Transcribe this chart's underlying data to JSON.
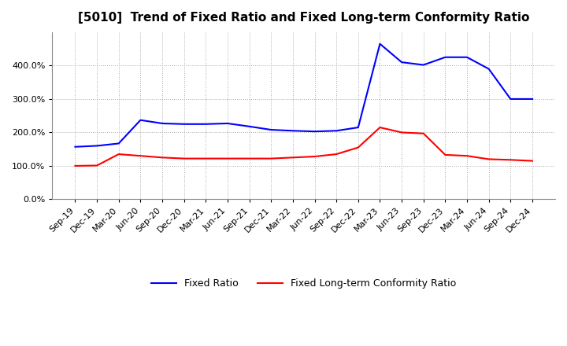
{
  "title": "[5010]  Trend of Fixed Ratio and Fixed Long-term Conformity Ratio",
  "x_labels": [
    "Sep-19",
    "Dec-19",
    "Mar-20",
    "Jun-20",
    "Sep-20",
    "Dec-20",
    "Mar-21",
    "Jun-21",
    "Sep-21",
    "Dec-21",
    "Mar-22",
    "Jun-22",
    "Sep-22",
    "Dec-22",
    "Mar-23",
    "Jun-23",
    "Sep-23",
    "Dec-23",
    "Mar-24",
    "Jun-24",
    "Sep-24",
    "Dec-24"
  ],
  "fixed_ratio": [
    157,
    160,
    167,
    237,
    227,
    225,
    225,
    227,
    218,
    208,
    205,
    203,
    205,
    215,
    465,
    410,
    402,
    425,
    425,
    390,
    300,
    300
  ],
  "fixed_lt_ratio": [
    100,
    101,
    135,
    130,
    125,
    122,
    122,
    122,
    122,
    122,
    125,
    128,
    135,
    155,
    215,
    200,
    197,
    133,
    130,
    120,
    118,
    115
  ],
  "fixed_ratio_color": "#0000FF",
  "fixed_lt_ratio_color": "#FF0000",
  "ylim": [
    0,
    500
  ],
  "yticks": [
    0,
    100,
    200,
    300,
    400
  ],
  "background_color": "#FFFFFF",
  "plot_bg_color": "#FFFFFF",
  "grid_color": "#AAAAAA",
  "legend_labels": [
    "Fixed Ratio",
    "Fixed Long-term Conformity Ratio"
  ],
  "title_fontsize": 11,
  "tick_fontsize": 8,
  "legend_fontsize": 9
}
